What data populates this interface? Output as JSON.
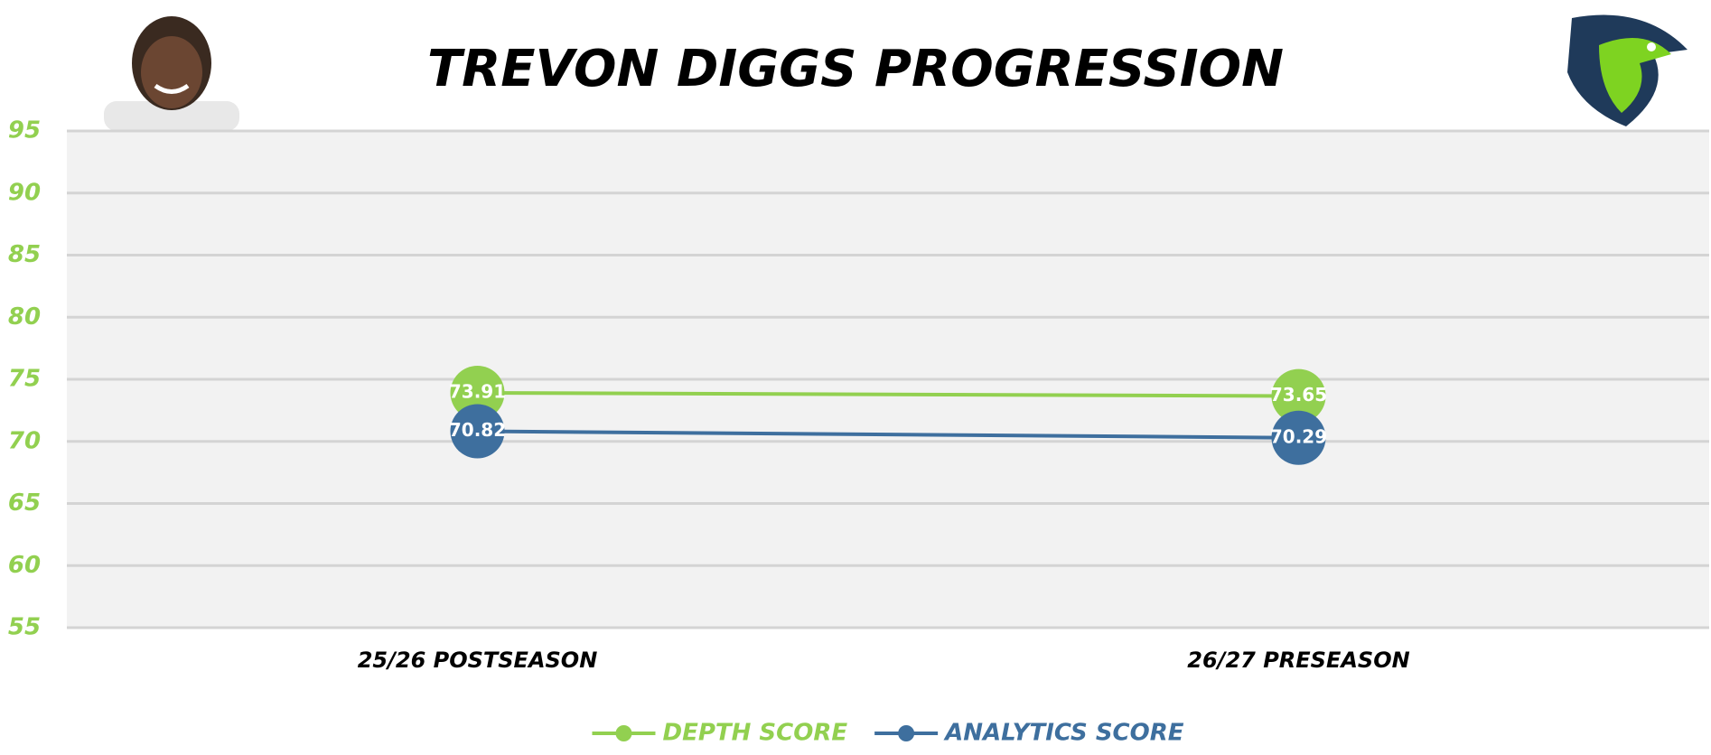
{
  "chart_data": {
    "type": "line",
    "title": "TREVON DIGGS PROGRESSION",
    "categories": [
      "25/26 POSTSEASON",
      "26/27 PRESEASON"
    ],
    "series": [
      {
        "name": "DEPTH SCORE",
        "color": "#92d050",
        "values": [
          73.91,
          73.65
        ]
      },
      {
        "name": "ANALYTICS SCORE",
        "color": "#3e6f9e",
        "values": [
          70.82,
          70.29
        ]
      }
    ],
    "ylim": [
      55,
      95
    ],
    "yticks": [
      55,
      60,
      65,
      70,
      75,
      80,
      85,
      90,
      95
    ],
    "ytick_color": "#92d050",
    "grid": true,
    "legend": "bottom"
  }
}
